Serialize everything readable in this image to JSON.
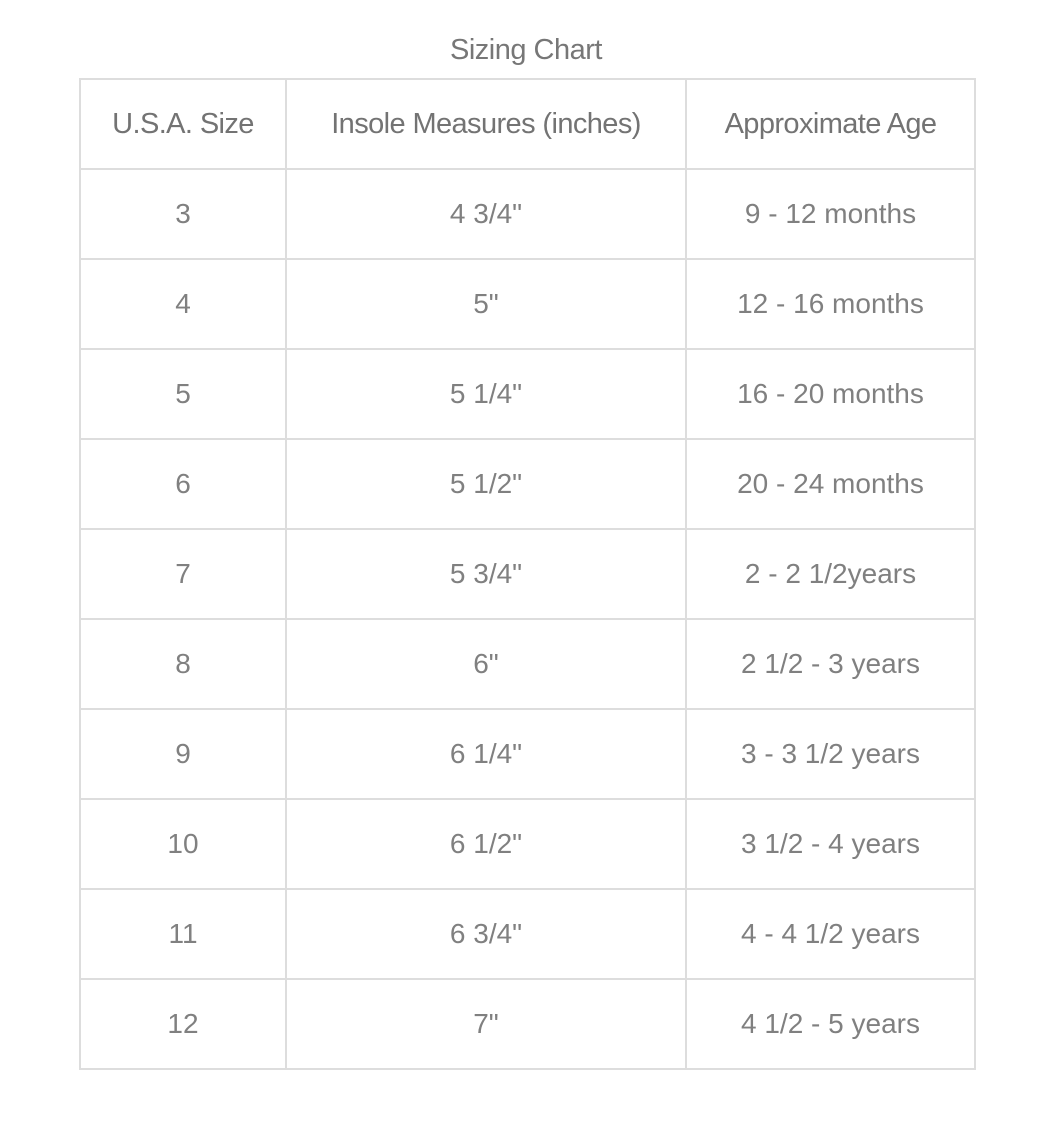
{
  "title": "Sizing Chart",
  "headers": [
    "U.S.A. Size",
    "Insole Measures (inches)",
    "Approximate Age"
  ],
  "rows": [
    [
      "3",
      "4 3/4\"",
      "9 - 12 months"
    ],
    [
      "4",
      "5\"",
      "12 - 16 months"
    ],
    [
      "5",
      "5 1/4\"",
      "16 - 20 months"
    ],
    [
      "6",
      "5 1/2\"",
      "20 - 24 months"
    ],
    [
      "7",
      "5 3/4\"",
      "2 - 2 1/2years"
    ],
    [
      "8",
      "6\"",
      "2 1/2 - 3 years"
    ],
    [
      "9",
      "6 1/4\"",
      "3 - 3 1/2 years"
    ],
    [
      "10",
      "6 1/2\"",
      "3 1/2 - 4 years"
    ],
    [
      "11",
      "6 3/4\"",
      "4 - 4 1/2 years"
    ],
    [
      "12",
      "7\"",
      "4 1/2 - 5 years"
    ]
  ]
}
